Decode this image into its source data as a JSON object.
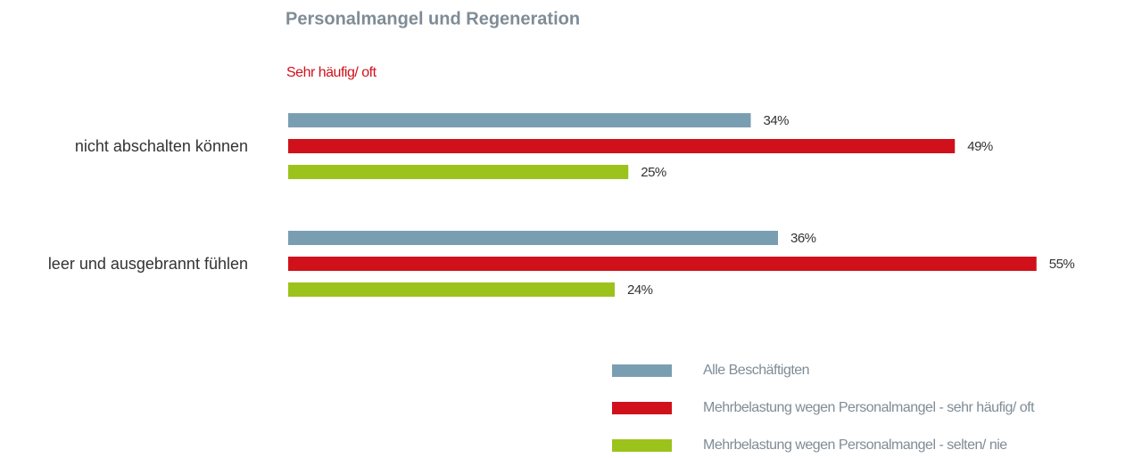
{
  "chart_data": {
    "type": "barh",
    "title": "Personalmangel und Regeneration",
    "subtitle": "Sehr häufig/ oft",
    "categories": [
      "nicht abschalten können",
      "leer und ausgebrannt fühlen"
    ],
    "series": [
      {
        "name": "Alle Beschäftigten",
        "color": "#7a9eb1",
        "values": [
          34,
          36
        ],
        "value_labels": [
          "34%",
          "36%"
        ]
      },
      {
        "name": "Mehrbelastung wegen Personalmangel - sehr häufig/ oft",
        "color": "#d0111b",
        "values": [
          49,
          55
        ],
        "value_labels": [
          "49%",
          "55%"
        ]
      },
      {
        "name": "Mehrbelastung wegen Personalmangel - selten/ nie",
        "color": "#9bc31c",
        "values": [
          25,
          24
        ],
        "value_labels": [
          "25%",
          "24%"
        ]
      }
    ]
  }
}
